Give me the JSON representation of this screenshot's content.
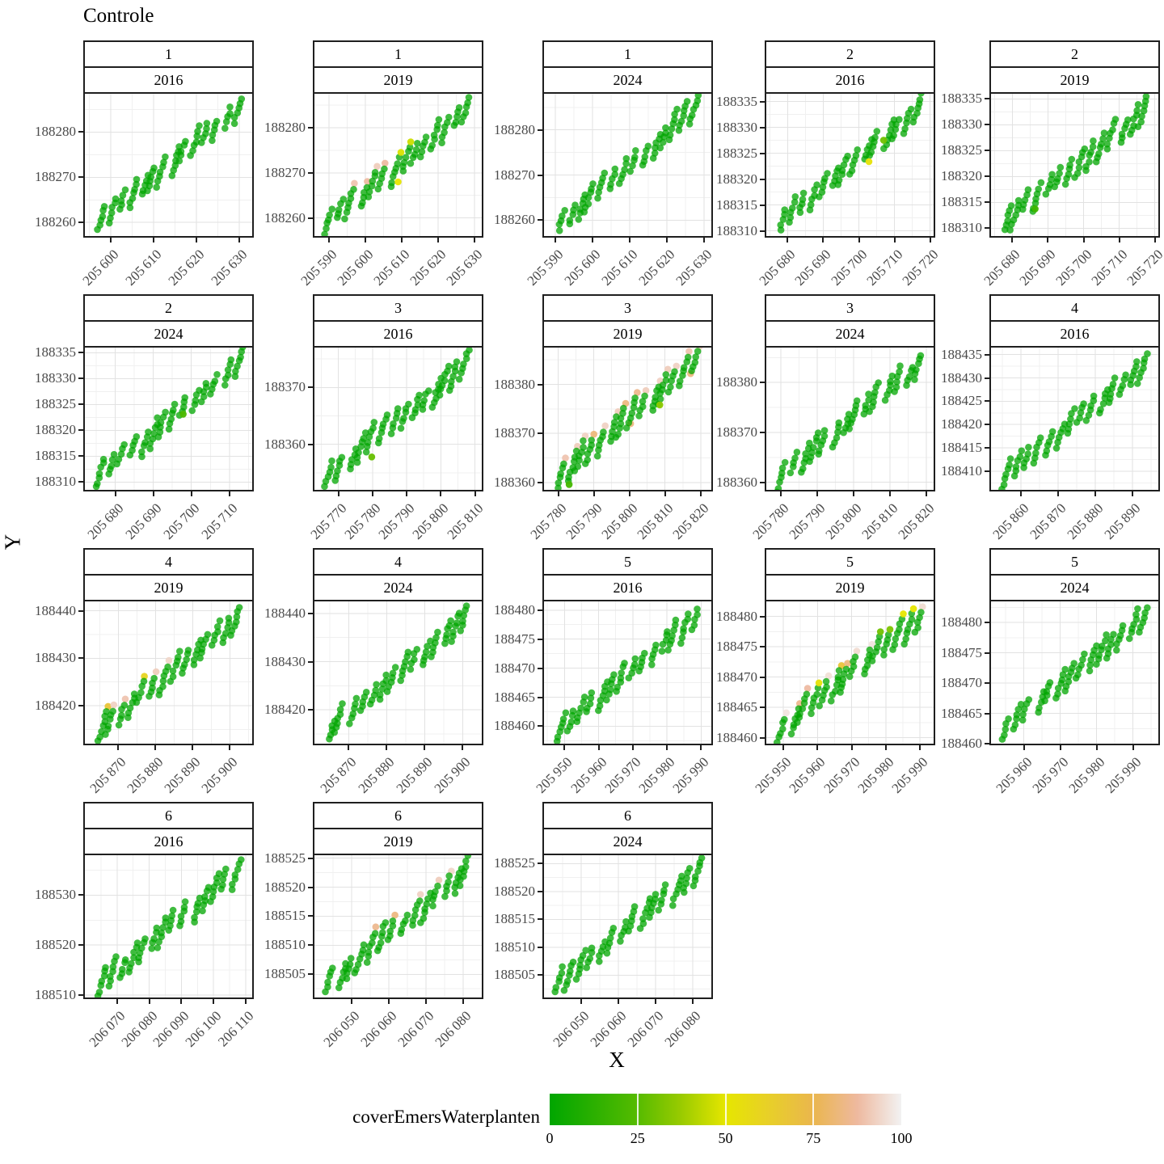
{
  "chart_data": {
    "type": "scatter",
    "title": "Controle",
    "xlabel": "X",
    "ylabel": "Y",
    "facet_variables": [
      "id",
      "Year"
    ],
    "color_variable": "coverEmersWaterplanten",
    "base_point_color": "#00A600",
    "grid": "on",
    "legend": {
      "title": "coverEmersWaterplanten",
      "position": "bottom",
      "ticks": [
        0,
        25,
        50,
        75,
        100
      ],
      "tick_labels": [
        "0",
        "25",
        "50",
        "75",
        "100"
      ],
      "gradient_stops": [
        {
          "value": 0,
          "color": "#00A600"
        },
        {
          "value": 12.5,
          "color": "#2BB000"
        },
        {
          "value": 25,
          "color": "#56BB00"
        },
        {
          "value": 37.5,
          "color": "#9ACB00"
        },
        {
          "value": 50,
          "color": "#E6E600"
        },
        {
          "value": 62.5,
          "color": "#E8CF29"
        },
        {
          "value": 75,
          "color": "#EAB64E"
        },
        {
          "value": 87.5,
          "color": "#EEB99F"
        },
        {
          "value": 100,
          "color": "#F2F2F2"
        }
      ]
    },
    "panels": [
      {
        "id": "1",
        "year": "2016",
        "row": 0,
        "col": 0,
        "x_range": [
          205594,
          205633
        ],
        "y_range": [
          188257,
          188288.5
        ],
        "x_ticks": [
          205600,
          205610,
          205620,
          205630
        ],
        "x_tick_labels": [
          "205 600",
          "205 610",
          "205 620",
          "205 630"
        ],
        "y_ticks": [
          188260,
          188270,
          188280
        ],
        "y_tick_labels": [
          "188260",
          "188270",
          "188280"
        ],
        "n_clusters": 14,
        "cluster_tops": [
          0,
          0,
          0,
          0,
          0,
          0,
          0,
          0,
          0,
          0,
          0,
          0,
          0,
          0
        ],
        "extra_points": []
      },
      {
        "id": "1",
        "year": "2019",
        "row": 0,
        "col": 1,
        "x_range": [
          205586,
          205632
        ],
        "y_range": [
          188256,
          188287.5
        ],
        "x_ticks": [
          205590,
          205600,
          205610,
          205620,
          205630
        ],
        "x_tick_labels": [
          "205 590",
          "205 600",
          "205 610",
          "205 620",
          "205 630"
        ],
        "y_ticks": [
          188260,
          188270,
          188280
        ],
        "y_tick_labels": [
          "188260",
          "188270",
          "188280"
        ],
        "n_clusters": 14,
        "cluster_tops": [
          0,
          0,
          90,
          88,
          92,
          88,
          48,
          46,
          0,
          0,
          0,
          0,
          0,
          0
        ],
        "extra_points": [
          {
            "t": 0.5,
            "dy": 20,
            "cover": 50
          }
        ]
      },
      {
        "id": "1",
        "year": "2024",
        "row": 0,
        "col": 2,
        "x_range": [
          205587,
          205632
        ],
        "y_range": [
          188256.5,
          188288
        ],
        "x_ticks": [
          205590,
          205600,
          205610,
          205620,
          205630
        ],
        "x_tick_labels": [
          "205 590",
          "205 600",
          "205 610",
          "205 620",
          "205 630"
        ],
        "y_ticks": [
          188260,
          188270,
          188280
        ],
        "y_tick_labels": [
          "188260",
          "188270",
          "188280"
        ],
        "n_clusters": 14,
        "cluster_tops": [
          0,
          0,
          0,
          0,
          0,
          0,
          0,
          0,
          0,
          0,
          0,
          0,
          0,
          0
        ],
        "extra_points": []
      },
      {
        "id": "2",
        "year": "2016",
        "row": 0,
        "col": 3,
        "x_range": [
          205674,
          205721
        ],
        "y_range": [
          188309,
          188336.5
        ],
        "x_ticks": [
          205680,
          205690,
          205700,
          205710,
          205720
        ],
        "x_tick_labels": [
          "205 680",
          "205 690",
          "205 700",
          "205 710",
          "205 720"
        ],
        "y_ticks": [
          188310,
          188315,
          188320,
          188325,
          188330,
          188335
        ],
        "y_tick_labels": [
          "188310",
          "188315",
          "188320",
          "188325",
          "188330",
          "188335"
        ],
        "n_clusters": 14,
        "cluster_tops": [
          0,
          0,
          0,
          0,
          0,
          0,
          0,
          0,
          0,
          0,
          0,
          0,
          0,
          0
        ],
        "extra_points": [
          {
            "t": 0.63,
            "dy": 14,
            "cover": 52
          },
          {
            "t": 0.73,
            "dy": 2,
            "cover": 30
          }
        ]
      },
      {
        "id": "2",
        "year": "2019",
        "row": 0,
        "col": 4,
        "x_range": [
          205674,
          205721
        ],
        "y_range": [
          188308.5,
          188336
        ],
        "x_ticks": [
          205680,
          205690,
          205700,
          205710,
          205720
        ],
        "x_tick_labels": [
          "205 680",
          "205 690",
          "205 700",
          "205 710",
          "205 720"
        ],
        "y_ticks": [
          188310,
          188315,
          188320,
          188325,
          188330,
          188335
        ],
        "y_tick_labels": [
          "188310",
          "188315",
          "188320",
          "188325",
          "188330",
          "188335"
        ],
        "n_clusters": 14,
        "cluster_tops": [
          0,
          0,
          0,
          0,
          0,
          0,
          0,
          0,
          0,
          0,
          0,
          0,
          0,
          0
        ],
        "extra_points": [
          {
            "t": 0.23,
            "dy": 14,
            "cover": 18
          }
        ]
      },
      {
        "id": "2",
        "year": "2024",
        "row": 1,
        "col": 0,
        "x_range": [
          205672,
          205716
        ],
        "y_range": [
          188308.5,
          188336
        ],
        "x_ticks": [
          205680,
          205690,
          205700,
          205710
        ],
        "x_tick_labels": [
          "205 680",
          "205 690",
          "205 700",
          "205 710"
        ],
        "y_ticks": [
          188310,
          188315,
          188320,
          188325,
          188330,
          188335
        ],
        "y_tick_labels": [
          "188310",
          "188315",
          "188320",
          "188325",
          "188330",
          "188335"
        ],
        "n_clusters": 14,
        "cluster_tops": [
          0,
          0,
          0,
          0,
          0,
          0,
          0,
          0,
          0,
          0,
          0,
          0,
          0,
          0
        ],
        "extra_points": [
          {
            "t": 0.6,
            "dy": 8,
            "cover": 22
          }
        ]
      },
      {
        "id": "3",
        "year": "2016",
        "row": 1,
        "col": 1,
        "x_range": [
          205763,
          205812
        ],
        "y_range": [
          188352,
          188377
        ],
        "x_ticks": [
          205770,
          205780,
          205790,
          205800,
          205810
        ],
        "x_tick_labels": [
          "205 770",
          "205 780",
          "205 790",
          "205 800",
          "205 810"
        ],
        "y_ticks": [
          188360,
          188370
        ],
        "y_tick_labels": [
          "188360",
          "188370"
        ],
        "n_clusters": 14,
        "cluster_tops": [
          0,
          0,
          0,
          0,
          0,
          0,
          0,
          0,
          0,
          0,
          0,
          0,
          0,
          50
        ],
        "extra_points": [
          {
            "t": 0.32,
            "dy": 20,
            "cover": 28
          }
        ]
      },
      {
        "id": "3",
        "year": "2019",
        "row": 1,
        "col": 2,
        "x_range": [
          205776,
          205823
        ],
        "y_range": [
          188358.5,
          188387.5
        ],
        "x_ticks": [
          205780,
          205790,
          205800,
          205810,
          205820
        ],
        "x_tick_labels": [
          "205 780",
          "205 790",
          "205 800",
          "205 810",
          "205 820"
        ],
        "y_ticks": [
          188360,
          188370,
          188380
        ],
        "y_tick_labels": [
          "188360",
          "188370",
          "188380"
        ],
        "n_clusters": 14,
        "cluster_tops": [
          90,
          92,
          93,
          82,
          93,
          92,
          83,
          85,
          92,
          93,
          92,
          93,
          90,
          93
        ],
        "extra_points": [
          {
            "t": 0.02,
            "dy": 26,
            "cover": 25
          },
          {
            "t": 0.1,
            "dy": 22,
            "cover": 20
          },
          {
            "t": 0.52,
            "dy": 8,
            "cover": 83
          },
          {
            "t": 0.72,
            "dy": 14,
            "cover": 35
          },
          {
            "t": 0.93,
            "dy": 6,
            "cover": 83
          }
        ]
      },
      {
        "id": "3",
        "year": "2024",
        "row": 1,
        "col": 3,
        "x_range": [
          205776,
          205822
        ],
        "y_range": [
          188358.5,
          188387
        ],
        "x_ticks": [
          205780,
          205790,
          205800,
          205810,
          205820
        ],
        "x_tick_labels": [
          "205 780",
          "205 790",
          "205 800",
          "205 810",
          "205 820"
        ],
        "y_ticks": [
          188360,
          188370,
          188380
        ],
        "y_tick_labels": [
          "188360",
          "188370",
          "188380"
        ],
        "n_clusters": 14,
        "cluster_tops": [
          0,
          0,
          0,
          0,
          0,
          0,
          0,
          0,
          0,
          0,
          0,
          0,
          0,
          0
        ],
        "extra_points": []
      },
      {
        "id": "4",
        "year": "2016",
        "row": 1,
        "col": 4,
        "x_range": [
          205852,
          205897
        ],
        "y_range": [
          188406,
          188436.5
        ],
        "x_ticks": [
          205860,
          205870,
          205880,
          205890
        ],
        "x_tick_labels": [
          "205 860",
          "205 870",
          "205 880",
          "205 890"
        ],
        "y_ticks": [
          188410,
          188415,
          188420,
          188425,
          188430,
          188435
        ],
        "y_tick_labels": [
          "188410",
          "188415",
          "188420",
          "188425",
          "188430",
          "188435"
        ],
        "n_clusters": 14,
        "cluster_tops": [
          0,
          0,
          0,
          0,
          0,
          0,
          0,
          0,
          0,
          0,
          0,
          0,
          0,
          0
        ],
        "extra_points": []
      },
      {
        "id": "4",
        "year": "2019",
        "row": 2,
        "col": 0,
        "x_range": [
          205861,
          205906
        ],
        "y_range": [
          188412,
          188442
        ],
        "x_ticks": [
          205870,
          205880,
          205890,
          205900
        ],
        "x_tick_labels": [
          "205 870",
          "205 880",
          "205 890",
          "205 900"
        ],
        "y_ticks": [
          188420,
          188430,
          188440
        ],
        "y_tick_labels": [
          "188420",
          "188430",
          "188440"
        ],
        "n_clusters": 14,
        "cluster_tops": [
          68,
          93,
          90,
          0,
          60,
          92,
          94,
          0,
          0,
          0,
          0,
          0,
          0,
          0
        ],
        "extra_points": []
      },
      {
        "id": "4",
        "year": "2024",
        "row": 2,
        "col": 1,
        "x_range": [
          205861,
          205905
        ],
        "y_range": [
          188413,
          188442.5
        ],
        "x_ticks": [
          205870,
          205880,
          205890,
          205900
        ],
        "x_tick_labels": [
          "205 870",
          "205 880",
          "205 890",
          "205 900"
        ],
        "y_ticks": [
          188420,
          188430,
          188440
        ],
        "y_tick_labels": [
          "188420",
          "188430",
          "188440"
        ],
        "n_clusters": 14,
        "cluster_tops": [
          0,
          0,
          0,
          0,
          0,
          0,
          0,
          0,
          0,
          0,
          0,
          0,
          0,
          0
        ],
        "extra_points": []
      },
      {
        "id": "5",
        "year": "2016",
        "row": 2,
        "col": 2,
        "x_range": [
          205944,
          205993
        ],
        "y_range": [
          188457,
          188481.5
        ],
        "x_ticks": [
          205950,
          205960,
          205970,
          205980,
          205990
        ],
        "x_tick_labels": [
          "205 950",
          "205 960",
          "205 970",
          "205 980",
          "205 990"
        ],
        "y_ticks": [
          188460,
          188465,
          188470,
          188475,
          188480
        ],
        "y_tick_labels": [
          "188460",
          "188465",
          "188470",
          "188475",
          "188480"
        ],
        "n_clusters": 14,
        "cluster_tops": [
          0,
          0,
          0,
          0,
          0,
          0,
          0,
          0,
          0,
          0,
          0,
          0,
          0,
          0
        ],
        "extra_points": []
      },
      {
        "id": "5",
        "year": "2019",
        "row": 2,
        "col": 3,
        "x_range": [
          205945,
          205994
        ],
        "y_range": [
          188459,
          188482.5
        ],
        "x_ticks": [
          205950,
          205960,
          205970,
          205980,
          205990
        ],
        "x_tick_labels": [
          "205 950",
          "205 960",
          "205 970",
          "205 980",
          "205 990"
        ],
        "y_ticks": [
          188460,
          188465,
          188470,
          188475,
          188480
        ],
        "y_tick_labels": [
          "188460",
          "188465",
          "188470",
          "188475",
          "188480"
        ],
        "n_clusters": 14,
        "cluster_tops": [
          97,
          85,
          88,
          52,
          96,
          68,
          82,
          95,
          97,
          30,
          32,
          50,
          50,
          95
        ],
        "extra_points": []
      },
      {
        "id": "5",
        "year": "2024",
        "row": 2,
        "col": 4,
        "x_range": [
          205951,
          205997
        ],
        "y_range": [
          188460,
          188483.5
        ],
        "x_ticks": [
          205960,
          205970,
          205980,
          205990
        ],
        "x_tick_labels": [
          "205 960",
          "205 970",
          "205 980",
          "205 990"
        ],
        "y_ticks": [
          188460,
          188465,
          188470,
          188475,
          188480
        ],
        "y_tick_labels": [
          "188460",
          "188465",
          "188470",
          "188475",
          "188480"
        ],
        "n_clusters": 14,
        "cluster_tops": [
          0,
          0,
          0,
          0,
          0,
          0,
          0,
          0,
          0,
          0,
          0,
          0,
          0,
          0
        ],
        "extra_points": []
      },
      {
        "id": "6",
        "year": "2016",
        "row": 3,
        "col": 0,
        "x_range": [
          206060,
          206112
        ],
        "y_range": [
          188509.5,
          188538
        ],
        "x_ticks": [
          206070,
          206080,
          206090,
          206100,
          206110
        ],
        "x_tick_labels": [
          "206 070",
          "206 080",
          "206 090",
          "206 100",
          "206 110"
        ],
        "y_ticks": [
          188510,
          188520,
          188530
        ],
        "y_tick_labels": [
          "188510",
          "188520",
          "188530"
        ],
        "n_clusters": 14,
        "cluster_tops": [
          0,
          0,
          0,
          0,
          0,
          0,
          0,
          0,
          0,
          0,
          0,
          0,
          0,
          0
        ],
        "extra_points": []
      },
      {
        "id": "6",
        "year": "2019",
        "row": 3,
        "col": 1,
        "x_range": [
          206040,
          206085
        ],
        "y_range": [
          188501,
          188525.5
        ],
        "x_ticks": [
          206050,
          206060,
          206070,
          206080
        ],
        "x_tick_labels": [
          "206 050",
          "206 060",
          "206 070",
          "206 080"
        ],
        "y_ticks": [
          188505,
          188510,
          188515,
          188520,
          188525
        ],
        "y_tick_labels": [
          "188505",
          "188510",
          "188515",
          "188520",
          "188525"
        ],
        "n_clusters": 14,
        "cluster_tops": [
          0,
          0,
          0,
          0,
          85,
          0,
          83,
          0,
          93,
          0,
          92,
          94,
          0,
          0
        ],
        "extra_points": []
      },
      {
        "id": "6",
        "year": "2024",
        "row": 3,
        "col": 2,
        "x_range": [
          206040,
          206085
        ],
        "y_range": [
          188501,
          188526.5
        ],
        "x_ticks": [
          206050,
          206060,
          206070,
          206080
        ],
        "x_tick_labels": [
          "206 050",
          "206 060",
          "206 070",
          "206 080"
        ],
        "y_ticks": [
          188505,
          188510,
          188515,
          188520,
          188525
        ],
        "y_tick_labels": [
          "188505",
          "188510",
          "188515",
          "188520",
          "188525"
        ],
        "n_clusters": 14,
        "cluster_tops": [
          0,
          0,
          0,
          0,
          0,
          0,
          0,
          0,
          0,
          0,
          0,
          0,
          0,
          0
        ],
        "extra_points": []
      }
    ]
  }
}
